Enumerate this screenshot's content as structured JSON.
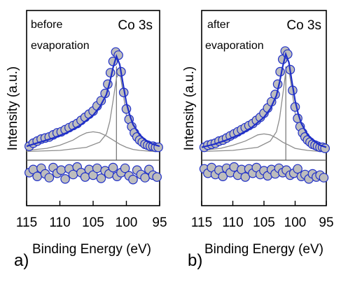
{
  "colors": {
    "data_fill": "#bdbdbd",
    "data_edge": "#1f2fc8",
    "envelope": "#1f2fc8",
    "component": "#8c8c8c",
    "baseline": "#555555"
  },
  "ylabel": "Intensity (a.u.)",
  "chart_data": [
    {
      "type": "scatter",
      "panel_label": "a)",
      "title": "Co 3s",
      "annotation": [
        "before",
        "evaporation"
      ],
      "xlabel": "Binding Energy (eV)",
      "ylabel": "Intensity (a.u.)",
      "xlim": [
        115,
        95
      ],
      "xticks": [
        115,
        110,
        105,
        100,
        95
      ],
      "x_reversed": true,
      "y_ticks_labeled": false,
      "peak_position": 101.5,
      "series": [
        {
          "kind": "points",
          "x": [
            114.6,
            114.0,
            113.4,
            112.8,
            112.2,
            111.6,
            111.0,
            110.4,
            109.8,
            109.2,
            108.6,
            108.0,
            107.4,
            106.8,
            106.2,
            105.6,
            105.0,
            104.4,
            103.8,
            103.2,
            102.8,
            102.4,
            102.0,
            101.6,
            101.2,
            100.8,
            100.4,
            100.0,
            99.6,
            99.2,
            98.8,
            98.4,
            98.0,
            97.6,
            97.2,
            96.8,
            96.4,
            96.0,
            95.6,
            95.2
          ],
          "y": [
            0.06,
            0.09,
            0.11,
            0.13,
            0.14,
            0.15,
            0.17,
            0.19,
            0.2,
            0.22,
            0.24,
            0.26,
            0.28,
            0.31,
            0.34,
            0.37,
            0.4,
            0.45,
            0.5,
            0.57,
            0.66,
            0.77,
            0.88,
            0.97,
            0.94,
            0.78,
            0.58,
            0.42,
            0.32,
            0.25,
            0.19,
            0.15,
            0.12,
            0.1,
            0.08,
            0.07,
            0.06,
            0.06,
            0.05,
            0.05
          ]
        },
        {
          "kind": "envelope",
          "x": [
            115,
            113,
            111,
            109,
            107,
            105,
            104,
            103,
            102.5,
            102,
            101.5,
            101,
            100.5,
            100,
            99.5,
            99,
            98,
            97,
            96,
            95
          ],
          "y": [
            0.06,
            0.1,
            0.14,
            0.19,
            0.26,
            0.36,
            0.44,
            0.56,
            0.68,
            0.82,
            0.93,
            0.85,
            0.66,
            0.48,
            0.36,
            0.27,
            0.17,
            0.11,
            0.08,
            0.06
          ]
        },
        {
          "kind": "component",
          "x": [
            115,
            112,
            110,
            108,
            107,
            106,
            105,
            104,
            103,
            102,
            101,
            100,
            99,
            98,
            96,
            95
          ],
          "y": [
            0.02,
            0.04,
            0.07,
            0.12,
            0.16,
            0.19,
            0.2,
            0.19,
            0.16,
            0.12,
            0.08,
            0.05,
            0.03,
            0.02,
            0.01,
            0.01
          ]
        },
        {
          "kind": "component",
          "x": [
            115,
            110,
            106,
            104,
            103,
            102.5,
            102,
            101.5,
            101,
            100.5,
            100,
            99.5,
            99,
            98,
            97,
            95
          ],
          "y": [
            0.01,
            0.02,
            0.05,
            0.1,
            0.18,
            0.3,
            0.5,
            0.72,
            0.78,
            0.58,
            0.36,
            0.22,
            0.14,
            0.07,
            0.04,
            0.02
          ]
        },
        {
          "kind": "residual",
          "x": [
            114.6,
            114.0,
            113.4,
            112.8,
            112.2,
            111.6,
            111.0,
            110.4,
            109.8,
            109.2,
            108.6,
            108.0,
            107.4,
            106.8,
            106.2,
            105.6,
            105.0,
            104.4,
            103.8,
            103.2,
            102.6,
            102.0,
            101.4,
            100.8,
            100.2,
            99.6,
            99.0,
            98.4,
            97.8,
            97.2,
            96.6,
            96.0,
            95.4
          ],
          "y": [
            -0.02,
            0.03,
            -0.08,
            0.05,
            -0.04,
            -0.1,
            0.06,
            -0.03,
            0.02,
            -0.12,
            0.04,
            -0.05,
            0.07,
            -0.02,
            -0.09,
            0.03,
            -0.06,
            0.05,
            -0.11,
            0.01,
            -0.04,
            0.06,
            -0.08,
            -0.02,
            0.05,
            -0.07,
            -0.13,
            0.02,
            -0.05,
            -0.1,
            0.03,
            -0.06,
            -0.09
          ]
        }
      ]
    },
    {
      "type": "scatter",
      "panel_label": "b)",
      "title": "Co 3s",
      "annotation": [
        "after",
        "evaporation"
      ],
      "xlabel": "Binding Energy (eV)",
      "ylabel": "Intensity (a.u.)",
      "xlim": [
        115,
        95
      ],
      "xticks": [
        115,
        110,
        105,
        100,
        95
      ],
      "x_reversed": true,
      "y_ticks_labeled": false,
      "peak_position": 101.5,
      "series": [
        {
          "kind": "points",
          "x": [
            114.6,
            114.0,
            113.4,
            112.8,
            112.2,
            111.6,
            111.0,
            110.4,
            109.8,
            109.2,
            108.6,
            108.0,
            107.4,
            106.8,
            106.2,
            105.6,
            105.0,
            104.4,
            103.8,
            103.2,
            102.8,
            102.4,
            102.0,
            101.6,
            101.2,
            100.8,
            100.4,
            100.0,
            99.6,
            99.2,
            98.8,
            98.4,
            98.0,
            97.6,
            97.2,
            96.8,
            96.4,
            96.0,
            95.6,
            95.2
          ],
          "y": [
            0.05,
            0.07,
            0.08,
            0.09,
            0.11,
            0.12,
            0.14,
            0.16,
            0.18,
            0.2,
            0.22,
            0.24,
            0.26,
            0.28,
            0.31,
            0.34,
            0.38,
            0.43,
            0.49,
            0.56,
            0.66,
            0.78,
            0.9,
            0.98,
            0.95,
            0.8,
            0.6,
            0.44,
            0.33,
            0.25,
            0.19,
            0.15,
            0.12,
            0.1,
            0.08,
            0.07,
            0.06,
            0.05,
            0.05,
            0.04
          ]
        },
        {
          "kind": "envelope",
          "x": [
            115,
            113,
            111,
            109,
            107,
            105,
            104,
            103,
            102.5,
            102,
            101.5,
            101,
            100.5,
            100,
            99.5,
            99,
            98,
            97,
            96,
            95
          ],
          "y": [
            0.05,
            0.08,
            0.12,
            0.17,
            0.24,
            0.34,
            0.42,
            0.55,
            0.68,
            0.83,
            0.95,
            0.87,
            0.68,
            0.5,
            0.37,
            0.28,
            0.17,
            0.11,
            0.07,
            0.05
          ]
        },
        {
          "kind": "component",
          "x": [
            115,
            112,
            110,
            108,
            107,
            106,
            105,
            104,
            103,
            102,
            101,
            100,
            99,
            98,
            96,
            95
          ],
          "y": [
            0.02,
            0.04,
            0.07,
            0.11,
            0.14,
            0.17,
            0.18,
            0.17,
            0.14,
            0.1,
            0.07,
            0.04,
            0.03,
            0.02,
            0.01,
            0.01
          ]
        },
        {
          "kind": "component",
          "x": [
            115,
            110,
            106,
            104,
            103,
            102.5,
            102,
            101.5,
            101,
            100.5,
            100,
            99.5,
            99,
            98,
            97,
            95
          ],
          "y": [
            0.01,
            0.02,
            0.05,
            0.11,
            0.2,
            0.33,
            0.55,
            0.78,
            0.8,
            0.6,
            0.38,
            0.23,
            0.14,
            0.07,
            0.04,
            0.02
          ]
        },
        {
          "kind": "residual",
          "x": [
            114.6,
            114.0,
            113.4,
            112.8,
            112.2,
            111.6,
            111.0,
            110.4,
            109.8,
            109.2,
            108.6,
            108.0,
            107.4,
            106.8,
            106.2,
            105.6,
            105.0,
            104.4,
            103.8,
            103.2,
            102.6,
            102.0,
            101.4,
            100.8,
            100.2,
            99.6,
            99.0,
            98.4,
            97.8,
            97.2,
            96.6,
            96.0,
            95.4
          ],
          "y": [
            0.04,
            -0.03,
            0.06,
            -0.05,
            0.02,
            -0.08,
            0.05,
            -0.02,
            0.07,
            -0.06,
            0.03,
            -0.09,
            0.04,
            -0.03,
            0.06,
            -0.05,
            0.01,
            -0.07,
            0.03,
            -0.04,
            0.05,
            -0.02,
            0.02,
            -0.06,
            -0.03,
            0.04,
            -0.08,
            -0.05,
            -0.12,
            -0.04,
            -0.09,
            -0.06,
            -0.1
          ]
        }
      ]
    }
  ]
}
